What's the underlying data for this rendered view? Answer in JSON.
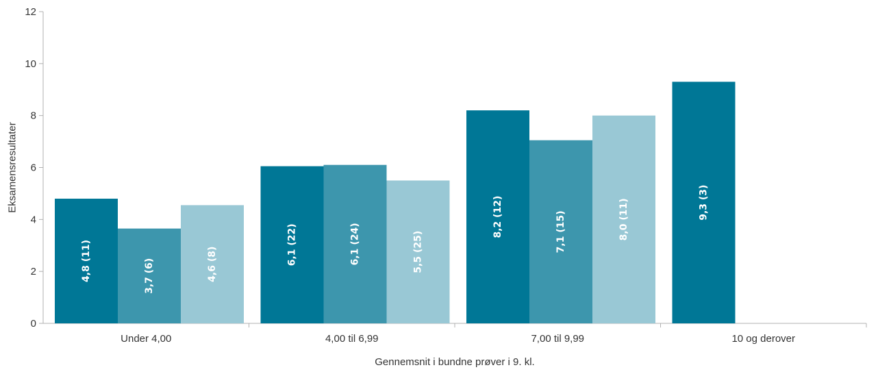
{
  "chart_data": {
    "type": "bar",
    "categories": [
      "Under 4,00",
      "4,00 til 6,99",
      "7,00 til 9,99",
      "10 og derover"
    ],
    "series": [
      {
        "values": [
          4.8,
          6.05,
          8.2,
          9.3
        ],
        "labels": [
          "4,8 (11)",
          "6,1 (22)",
          "8,2 (12)",
          "9,3 (3)"
        ],
        "color": "#007796"
      },
      {
        "values": [
          3.65,
          6.1,
          7.05,
          null
        ],
        "labels": [
          "3,7 (6)",
          "6,1 (24)",
          "7,1 (15)",
          ""
        ],
        "color": "#3d96ad"
      },
      {
        "values": [
          4.55,
          5.5,
          8.0,
          null
        ],
        "labels": [
          "4,6 (8)",
          "5,5 (25)",
          "8,0 (11)",
          ""
        ],
        "color": "#99c8d5"
      }
    ],
    "ylim": [
      0,
      12
    ],
    "yticks": [
      0,
      2,
      4,
      6,
      8,
      10,
      12
    ],
    "xlabel": "Gennemsnit i bundne prøver i 9. kl.",
    "ylabel": "Eksamensresultater",
    "grid": false
  }
}
